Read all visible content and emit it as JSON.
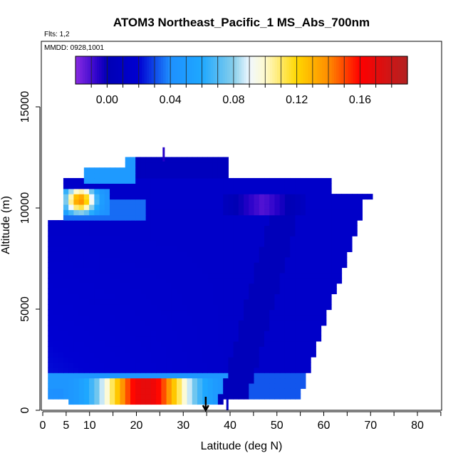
{
  "chart_data": {
    "type": "heatmap",
    "title": "ATOM3 Northeast_Pacific_1 MS_Abs_700nm",
    "annotations": [
      "Flts: 1,2",
      "MMDD: 0928,1001"
    ],
    "xlabel": "Latitude (deg N)",
    "ylabel": "Altitude (m)",
    "xlim": [
      0,
      85
    ],
    "ylim": [
      0,
      18000
    ],
    "x_ticks": [
      0,
      5,
      10,
      20,
      30,
      40,
      50,
      60,
      70,
      80
    ],
    "x_tick_labels": [
      "0",
      "5",
      "10",
      "20",
      "30",
      "40",
      "50",
      "60",
      "70",
      "80"
    ],
    "x_minor_ticks": [
      15,
      25,
      35,
      45,
      55,
      65,
      75,
      85
    ],
    "y_ticks": [
      0,
      5000,
      10000,
      15000
    ],
    "y_tick_labels": [
      "0",
      "5000",
      "10000",
      "15000"
    ],
    "colorbar": {
      "ticks": [
        0.0,
        0.04,
        0.08,
        0.12,
        0.16
      ],
      "tick_labels": [
        "0.00",
        "0.04",
        "0.08",
        "0.12",
        "0.16"
      ],
      "range": [
        -0.02,
        0.19
      ],
      "stops": [
        {
          "v": -0.02,
          "color": "#8a2be2"
        },
        {
          "v": -0.005,
          "color": "#2400c8"
        },
        {
          "v": 0.0,
          "color": "#0000b4"
        },
        {
          "v": 0.02,
          "color": "#0000d2"
        },
        {
          "v": 0.04,
          "color": "#1e90ff"
        },
        {
          "v": 0.06,
          "color": "#1ea8ff"
        },
        {
          "v": 0.08,
          "color": "#87ceeb"
        },
        {
          "v": 0.09,
          "color": "#f0f8ff"
        },
        {
          "v": 0.1,
          "color": "#fffacd"
        },
        {
          "v": 0.12,
          "color": "#ffd700"
        },
        {
          "v": 0.14,
          "color": "#ff8c00"
        },
        {
          "v": 0.16,
          "color": "#ff0000"
        },
        {
          "v": 0.19,
          "color": "#b22222"
        }
      ]
    },
    "marker": {
      "x": 34.8,
      "label": "arrow"
    },
    "curtain": {
      "profile_top": [
        [
          1,
          11400
        ],
        [
          5,
          11400
        ],
        [
          8,
          11900
        ],
        [
          18,
          12400
        ],
        [
          40,
          11400
        ],
        [
          55,
          11400
        ],
        [
          62,
          11300
        ],
        [
          70,
          10700
        ],
        [
          68,
          10000
        ],
        [
          65,
          8000
        ],
        [
          62,
          6000
        ],
        [
          58,
          4000
        ],
        [
          56,
          2000
        ],
        [
          54,
          500
        ]
      ],
      "background_value": 0.015
    },
    "features": [
      {
        "name": "surface-plume",
        "lat_min": 5,
        "lat_max": 38,
        "alt_min": 400,
        "alt_max": 1600,
        "peak_lat": 22,
        "peak_value": 0.17
      },
      {
        "name": "upper-plume",
        "lat_min": 4,
        "lat_max": 14,
        "alt_min": 9700,
        "alt_max": 11000,
        "peak_lat": 8,
        "peak_value": 0.14
      },
      {
        "name": "low-band",
        "lat_min": 1,
        "lat_max": 40,
        "alt_min": 1000,
        "alt_max": 1900,
        "value": 0.045
      },
      {
        "name": "upper-lobe",
        "lat_min": 9,
        "lat_max": 20,
        "alt_min": 11300,
        "alt_max": 12000,
        "value": 0.05
      },
      {
        "name": "upper-negative",
        "lat_min": 38,
        "lat_max": 55,
        "alt_min": 9600,
        "alt_max": 10600,
        "value": -0.012
      },
      {
        "name": "slant-band",
        "lat_start": 40,
        "lat_end": 52,
        "alt_start": 0,
        "alt_end": 10000,
        "value": 0.002
      }
    ]
  }
}
